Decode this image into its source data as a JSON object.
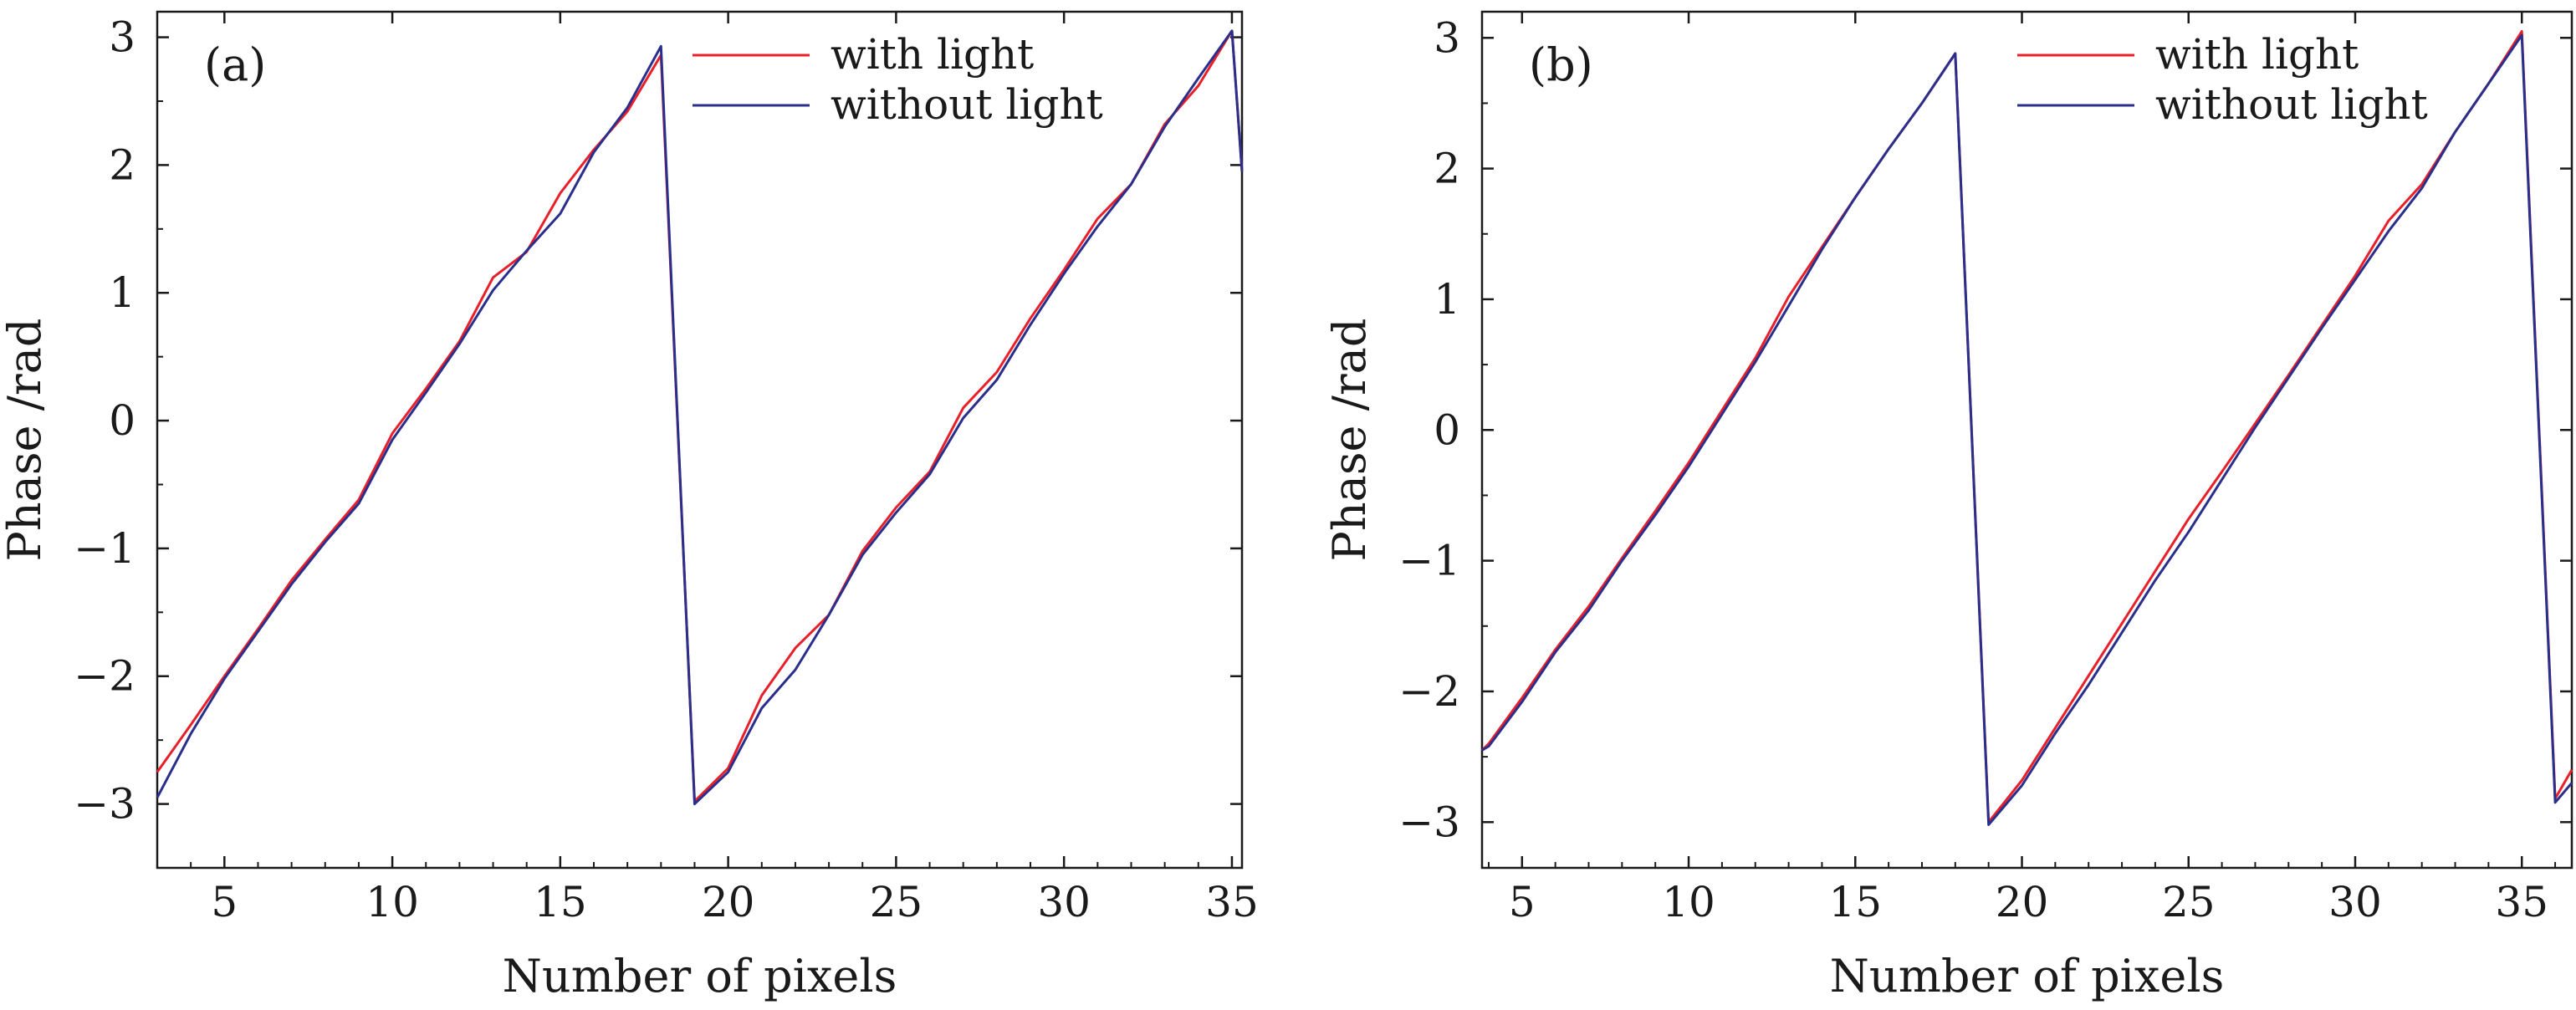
{
  "chart_data": [
    {
      "type": "line",
      "panel_label": "(a)",
      "xlabel": "Number of pixels",
      "ylabel": "Phase /rad",
      "xlim": [
        3,
        35.3
      ],
      "ylim": [
        -3.5,
        3.2
      ],
      "xticks": [
        5,
        10,
        15,
        20,
        25,
        30,
        35
      ],
      "xtick_labels": [
        "5",
        "10",
        "15",
        "20",
        "25",
        "30",
        "35"
      ],
      "yticks": [
        -3,
        -2,
        -1,
        0,
        1,
        2,
        3
      ],
      "ytick_labels": [
        "−3",
        "−2",
        "−1",
        "0",
        "1",
        "2",
        "3"
      ],
      "grid": false,
      "legend_position": "top-right",
      "series": [
        {
          "name": "with light",
          "color": "#e8202a",
          "x": [
            3,
            4,
            5,
            6,
            7,
            8,
            9,
            10,
            11,
            12,
            13,
            14,
            15,
            16,
            17,
            18,
            19,
            20,
            21,
            22,
            23,
            24,
            25,
            26,
            27,
            28,
            29,
            30,
            31,
            32,
            33,
            34,
            35,
            35.3
          ],
          "y": [
            -2.75,
            -2.38,
            -2.0,
            -1.63,
            -1.25,
            -0.93,
            -0.62,
            -0.1,
            0.25,
            0.62,
            1.12,
            1.32,
            1.78,
            2.12,
            2.42,
            2.86,
            -2.98,
            -2.72,
            -2.15,
            -1.78,
            -1.52,
            -1.02,
            -0.68,
            -0.4,
            0.1,
            0.38,
            0.8,
            1.18,
            1.58,
            1.85,
            2.32,
            2.62,
            3.05,
            1.95
          ]
        },
        {
          "name": "without light",
          "color": "#2a2f8c",
          "x": [
            3,
            4,
            5,
            6,
            7,
            8,
            9,
            10,
            11,
            12,
            13,
            14,
            15,
            16,
            17,
            18,
            19,
            20,
            21,
            22,
            23,
            24,
            25,
            26,
            27,
            28,
            29,
            30,
            31,
            32,
            33,
            34,
            35,
            35.3
          ],
          "y": [
            -2.95,
            -2.45,
            -2.02,
            -1.65,
            -1.28,
            -0.95,
            -0.65,
            -0.15,
            0.22,
            0.6,
            1.02,
            1.33,
            1.62,
            2.1,
            2.45,
            2.93,
            -3.0,
            -2.75,
            -2.25,
            -1.95,
            -1.52,
            -1.05,
            -0.72,
            -0.42,
            0.02,
            0.32,
            0.75,
            1.15,
            1.52,
            1.85,
            2.3,
            2.68,
            3.05,
            1.95
          ]
        }
      ]
    },
    {
      "type": "line",
      "panel_label": "(b)",
      "xlabel": "Number of pixels",
      "ylabel": "Phase /rad",
      "xlim": [
        3.8,
        36.5
      ],
      "ylim": [
        -3.35,
        3.2
      ],
      "xticks": [
        5,
        10,
        15,
        20,
        25,
        30,
        35
      ],
      "xtick_labels": [
        "5",
        "10",
        "15",
        "20",
        "25",
        "30",
        "35"
      ],
      "yticks": [
        -3,
        -2,
        -1,
        0,
        1,
        2,
        3
      ],
      "ytick_labels": [
        "−3",
        "−2",
        "−1",
        "0",
        "1",
        "2",
        "3"
      ],
      "grid": false,
      "legend_position": "top-right",
      "series": [
        {
          "name": "with light",
          "color": "#e8202a",
          "x": [
            3.8,
            4,
            5,
            6,
            7,
            8,
            9,
            10,
            11,
            12,
            13,
            14,
            15,
            16,
            17,
            18,
            19,
            20,
            21,
            22,
            23,
            24,
            25,
            26,
            27,
            28,
            29,
            30,
            31,
            32,
            33,
            34,
            35,
            36,
            36.5
          ],
          "y": [
            -2.45,
            -2.4,
            -2.05,
            -1.68,
            -1.35,
            -0.98,
            -0.62,
            -0.25,
            0.15,
            0.55,
            1.02,
            1.4,
            1.78,
            2.15,
            2.5,
            2.88,
            -3.0,
            -2.68,
            -2.28,
            -1.88,
            -1.48,
            -1.08,
            -0.68,
            -0.32,
            0.05,
            0.42,
            0.8,
            1.18,
            1.6,
            1.88,
            2.28,
            2.65,
            3.05,
            -2.82,
            -2.6
          ]
        },
        {
          "name": "without light",
          "color": "#2a2f8c",
          "x": [
            3.8,
            4,
            5,
            6,
            7,
            8,
            9,
            10,
            11,
            12,
            13,
            14,
            15,
            16,
            17,
            18,
            19,
            20,
            21,
            22,
            23,
            24,
            25,
            26,
            27,
            28,
            29,
            30,
            31,
            32,
            33,
            34,
            35,
            36,
            36.5
          ],
          "y": [
            -2.45,
            -2.42,
            -2.08,
            -1.7,
            -1.38,
            -1.0,
            -0.65,
            -0.28,
            0.12,
            0.52,
            0.95,
            1.38,
            1.78,
            2.15,
            2.5,
            2.88,
            -3.02,
            -2.72,
            -2.32,
            -1.95,
            -1.55,
            -1.15,
            -0.78,
            -0.38,
            0.02,
            0.4,
            0.78,
            1.15,
            1.52,
            1.85,
            2.28,
            2.65,
            3.02,
            -2.85,
            -2.7
          ]
        }
      ]
    }
  ]
}
